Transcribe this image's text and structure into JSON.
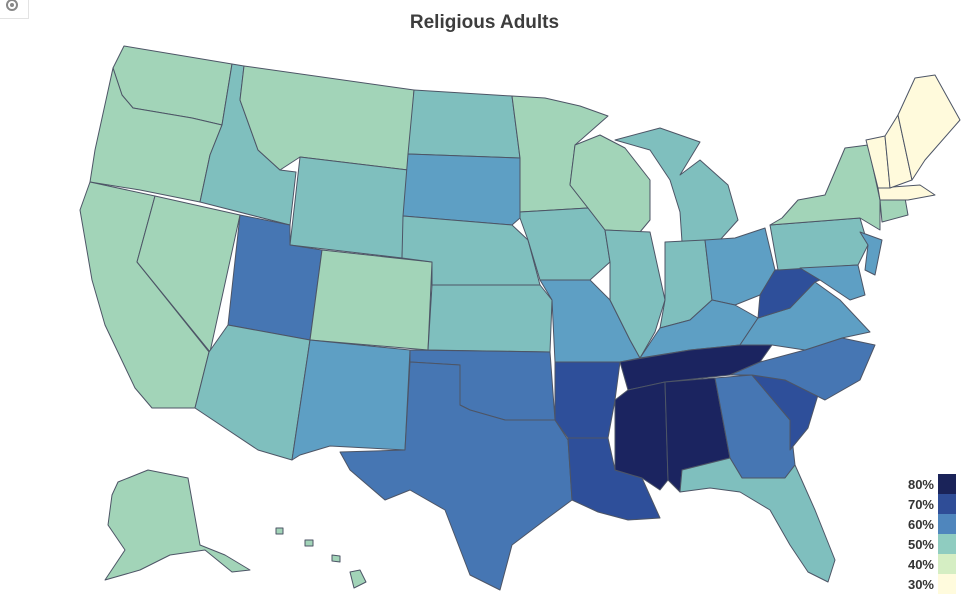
{
  "title": "Religious Adults",
  "icons": {
    "settings": "gear-icon"
  },
  "colors": {
    "c30": "#fffadc",
    "c40": "#d6efc0",
    "c50": "#a2d4b8",
    "c55": "#7fbfbe",
    "c60": "#5e9fc4",
    "c65": "#4676b3",
    "c70": "#2e4f9a",
    "c80": "#1b2460",
    "border": "#4d5566"
  },
  "legend": [
    {
      "label": "80%",
      "color": "#1a2359"
    },
    {
      "label": "70%",
      "color": "#2f4d97"
    },
    {
      "label": "60%",
      "color": "#4f86bd"
    },
    {
      "label": "50%",
      "color": "#8fccc0"
    },
    {
      "label": "40%",
      "color": "#d5eec3"
    },
    {
      "label": "30%",
      "color": "#fffbdd"
    }
  ]
}
